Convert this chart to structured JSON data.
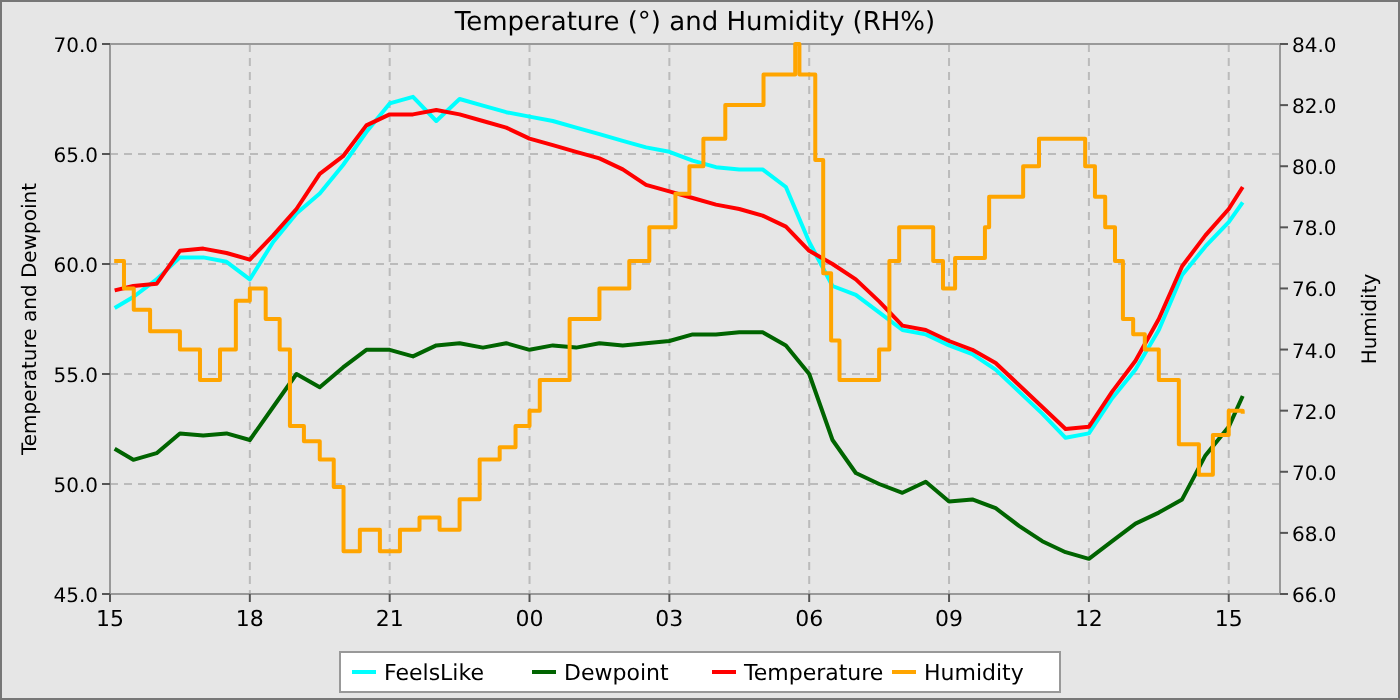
{
  "chart_data": {
    "type": "line",
    "title": "Temperature (°) and Humidity (RH%)",
    "ylabel": "Temperature and Dewpoint",
    "y2label": "Humidity",
    "x": [
      15.1,
      15.5,
      16,
      16.5,
      17,
      17.5,
      18,
      18.5,
      19,
      19.5,
      20,
      20.5,
      21,
      21.5,
      22,
      22.5,
      23,
      23.5,
      24,
      24.5,
      25,
      25.5,
      26,
      26.5,
      27,
      27.5,
      28,
      28.5,
      29,
      29.5,
      30,
      30.5,
      31,
      31.5,
      32,
      32.5,
      33,
      33.5,
      34,
      34.5,
      35,
      35.5,
      36,
      36.5,
      37,
      37.5,
      38,
      38.5,
      39,
      39.3
    ],
    "series": [
      {
        "name": "FeelsLike",
        "color": "#00ffff",
        "values": [
          58.0,
          58.5,
          59.3,
          60.3,
          60.3,
          60.1,
          59.3,
          61.0,
          62.3,
          63.2,
          64.5,
          66.0,
          67.3,
          67.6,
          66.5,
          67.5,
          67.2,
          66.9,
          66.7,
          66.5,
          66.2,
          65.9,
          65.6,
          65.3,
          65.1,
          64.7,
          64.4,
          64.3,
          64.3,
          63.5,
          61.0,
          59.0,
          58.6,
          57.8,
          57.0,
          56.8,
          56.3,
          55.9,
          55.2,
          54.2,
          53.2,
          52.1,
          52.3,
          53.9,
          55.2,
          57.0,
          59.5,
          60.8,
          61.9,
          62.8
        ]
      },
      {
        "name": "Dewpoint",
        "color": "#006400",
        "values": [
          51.6,
          51.1,
          51.4,
          52.3,
          52.2,
          52.3,
          52.0,
          53.5,
          55.0,
          54.4,
          55.3,
          56.1,
          56.1,
          55.8,
          56.3,
          56.4,
          56.2,
          56.4,
          56.1,
          56.3,
          56.2,
          56.4,
          56.3,
          56.4,
          56.5,
          56.8,
          56.8,
          56.9,
          56.9,
          56.3,
          55.0,
          52.0,
          50.5,
          50.0,
          49.6,
          50.1,
          49.2,
          49.3,
          48.9,
          48.1,
          47.4,
          46.9,
          46.6,
          47.4,
          48.2,
          48.7,
          49.3,
          51.3,
          52.6,
          54.0
        ]
      },
      {
        "name": "Temperature",
        "color": "#ff0000",
        "values": [
          58.8,
          59.0,
          59.1,
          60.6,
          60.7,
          60.5,
          60.2,
          61.3,
          62.5,
          64.1,
          64.9,
          66.3,
          66.8,
          66.8,
          67.0,
          66.8,
          66.5,
          66.2,
          65.7,
          65.4,
          65.1,
          64.8,
          64.3,
          63.6,
          63.3,
          63.0,
          62.7,
          62.5,
          62.2,
          61.7,
          60.6,
          60.0,
          59.3,
          58.3,
          57.2,
          57.0,
          56.5,
          56.1,
          55.5,
          54.5,
          53.5,
          52.5,
          52.6,
          54.2,
          55.6,
          57.5,
          59.9,
          61.3,
          62.5,
          63.5
        ]
      },
      {
        "name": "Humidity",
        "color": "#ffa500",
        "type": "step",
        "axis": "y2",
        "x": [
          15.09,
          15.3,
          15.51,
          15.86,
          16.2,
          16.5,
          16.93,
          17.36,
          17.7,
          18,
          18.34,
          18.64,
          18.86,
          19.16,
          19.5,
          19.8,
          20.01,
          20.36,
          20.79,
          21.22,
          21.64,
          22.07,
          22.5,
          22.93,
          23.36,
          23.7,
          24,
          24.22,
          24.73,
          24.86,
          25.2,
          25.5,
          25.93,
          26.14,
          26.44,
          26.57,
          27,
          27.13,
          27.3,
          27.43,
          27.64,
          27.73,
          28.07,
          28.2,
          28.93,
          29.02,
          29.57,
          29.7,
          29.79,
          30,
          30.13,
          30.3,
          30.47,
          30.65,
          31.29,
          31.5,
          31.72,
          31.93,
          32.45,
          32.66,
          32.87,
          33.13,
          33.56,
          33.77,
          33.86,
          34.5,
          34.59,
          34.93,
          35.87,
          35.92,
          36.13,
          36.35,
          36.56,
          36.73,
          36.95,
          37.2,
          37.5,
          37.93,
          38.36,
          38.66,
          39,
          39.3
        ],
        "values": [
          76.9,
          76.0,
          75.3,
          74.6,
          74.6,
          74.0,
          73.0,
          74.0,
          75.6,
          76.0,
          75.0,
          74.0,
          71.5,
          71.0,
          70.4,
          69.5,
          67.4,
          68.1,
          67.4,
          68.1,
          68.5,
          68.1,
          69.1,
          70.4,
          70.8,
          71.5,
          72.0,
          73.0,
          73.0,
          75.0,
          75.0,
          76.0,
          76.0,
          76.9,
          76.9,
          78.0,
          78.0,
          79.1,
          79.1,
          80.0,
          80.0,
          80.9,
          80.9,
          82.0,
          82.0,
          83.0,
          83.0,
          84.0,
          83.0,
          83.0,
          80.2,
          76.5,
          74.3,
          73.0,
          73.0,
          74.0,
          76.9,
          78.0,
          78.0,
          76.9,
          76.0,
          77.0,
          77.0,
          78.0,
          79.0,
          79.0,
          80.0,
          80.9,
          80.9,
          80.0,
          79.0,
          78.0,
          76.9,
          75.0,
          74.5,
          74.0,
          73.0,
          70.9,
          69.9,
          71.2,
          72.0,
          71.9
        ]
      }
    ],
    "xlim": [
      15,
      40.1
    ],
    "xticks": [
      {
        "value": 15,
        "label": "15"
      },
      {
        "value": 18,
        "label": "18"
      },
      {
        "value": 21,
        "label": "21"
      },
      {
        "value": 24,
        "label": "00"
      },
      {
        "value": 27,
        "label": "03"
      },
      {
        "value": 30,
        "label": "06"
      },
      {
        "value": 33,
        "label": "09"
      },
      {
        "value": 36,
        "label": "12"
      },
      {
        "value": 39,
        "label": "15"
      }
    ],
    "ylim": [
      45,
      70
    ],
    "yticks": [
      {
        "value": 45,
        "label": "45.0"
      },
      {
        "value": 50,
        "label": "50.0"
      },
      {
        "value": 55,
        "label": "55.0"
      },
      {
        "value": 60,
        "label": "60.0"
      },
      {
        "value": 65,
        "label": "65.0"
      },
      {
        "value": 70,
        "label": "70.0"
      }
    ],
    "y2lim": [
      66,
      84
    ],
    "y2ticks": [
      {
        "value": 66,
        "label": "66.0"
      },
      {
        "value": 68,
        "label": "68.0"
      },
      {
        "value": 70,
        "label": "70.0"
      },
      {
        "value": 72,
        "label": "72.0"
      },
      {
        "value": 74,
        "label": "74.0"
      },
      {
        "value": 76,
        "label": "76.0"
      },
      {
        "value": 78,
        "label": "78.0"
      },
      {
        "value": 80,
        "label": "80.0"
      },
      {
        "value": 82,
        "label": "82.0"
      },
      {
        "value": 84,
        "label": "84.0"
      }
    ],
    "grid": true,
    "legend": "bottom",
    "line_style": "solid"
  }
}
